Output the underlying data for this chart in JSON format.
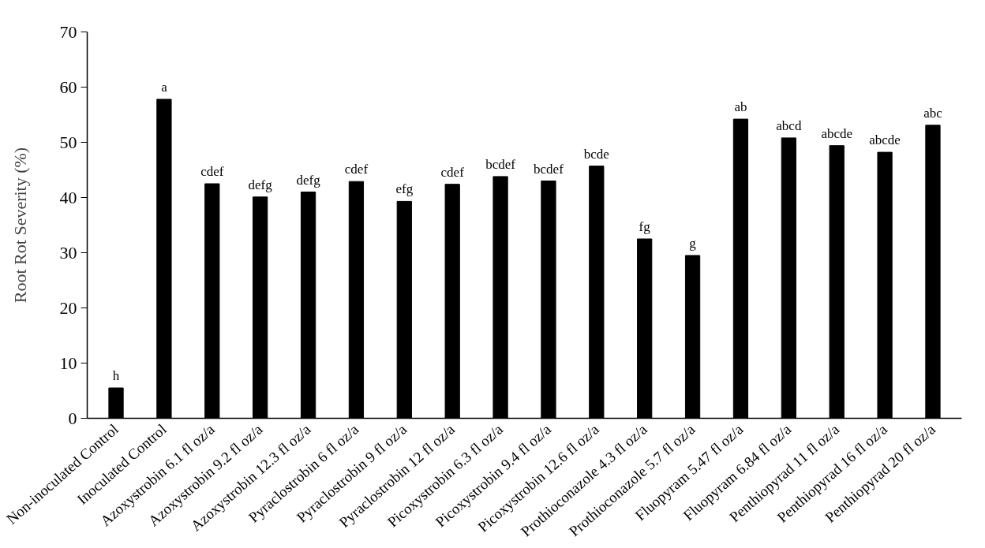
{
  "chart_data": {
    "type": "bar",
    "ylabel": "Root Rot Severity (%)",
    "categories": [
      "Non-inoculated Control",
      "Inoculated Control",
      "Azoxystrobin 6.1 fl oz/a",
      "Azoxystrobin 9.2 fl oz/a",
      "Azoxystrobin 12.3 fl oz/a",
      "Pyraclostrobin 6 fl oz/a",
      "Pyraclostrobin 9 fl oz/a",
      "Pyraclostrobin 12 fl oz/a",
      "Picoxystrobin 6.3 fl oz/a",
      "Picoxystrobin 9.4 fl oz/a",
      "Picoxystrobin 12.6 fl oz/a",
      "Prothioconazole 4.3 fl oz/a",
      "Prothioconazole 5.7 fl oz/a",
      "Fluopyram 5.47 fl oz/a",
      "Fluopyram 6.84 fl oz/a",
      "Penthiopyrad 11 fl oz/a",
      "Penthiopyrad 16 fl oz/a",
      "Penthiopyrad 20 fl oz/a"
    ],
    "values": [
      5.5,
      57.8,
      42.5,
      40.1,
      41.0,
      42.9,
      39.3,
      42.4,
      43.8,
      43.0,
      45.7,
      32.5,
      29.5,
      54.2,
      50.8,
      49.4,
      48.2,
      53.1
    ],
    "color": "#000000",
    "ylim": [
      0,
      70
    ],
    "yticks": [
      0,
      10,
      20,
      30,
      40,
      50,
      60,
      70
    ],
    "grid": false,
    "annotations": [
      {
        "text": "h",
        "x": "Non-inoculated Control",
        "y": 5.5
      },
      {
        "text": "a",
        "x": "Inoculated Control",
        "y": 57.8
      },
      {
        "text": "cdef",
        "x": "Azoxystrobin 6.1 fl oz/a",
        "y": 42.5
      },
      {
        "text": "defg",
        "x": "Azoxystrobin 9.2 fl oz/a",
        "y": 40.1
      },
      {
        "text": "defg",
        "x": "Azoxystrobin 12.3 fl oz/a",
        "y": 41.0
      },
      {
        "text": "cdef",
        "x": "Pyraclostrobin 6 fl oz/a",
        "y": 42.9
      },
      {
        "text": "efg",
        "x": "Pyraclostrobin 9 fl oz/a",
        "y": 39.3
      },
      {
        "text": "cdef",
        "x": "Pyraclostrobin 12 fl oz/a",
        "y": 42.4
      },
      {
        "text": "bcdef",
        "x": "Picoxystrobin 6.3 fl oz/a",
        "y": 43.8
      },
      {
        "text": "bcdef",
        "x": "Picoxystrobin 9.4 fl oz/a",
        "y": 43.0
      },
      {
        "text": "bcde",
        "x": "Picoxystrobin 12.6 fl oz/a",
        "y": 45.7
      },
      {
        "text": "fg",
        "x": "Prothioconazole 4.3 fl oz/a",
        "y": 32.5
      },
      {
        "text": "g",
        "x": "Prothioconazole 5.7 fl oz/a",
        "y": 29.5
      },
      {
        "text": "ab",
        "x": "Fluopyram 5.47 fl oz/a",
        "y": 54.2
      },
      {
        "text": "abcd",
        "x": "Fluopyram 6.84 fl oz/a",
        "y": 50.8
      },
      {
        "text": "abcde",
        "x": "Penthiopyrad 11 fl oz/a",
        "y": 49.4
      },
      {
        "text": "abcde",
        "x": "Penthiopyrad 16 fl oz/a",
        "y": 48.2
      },
      {
        "text": "abc",
        "x": "Penthiopyrad 20 fl oz/a",
        "y": 53.1
      }
    ]
  }
}
